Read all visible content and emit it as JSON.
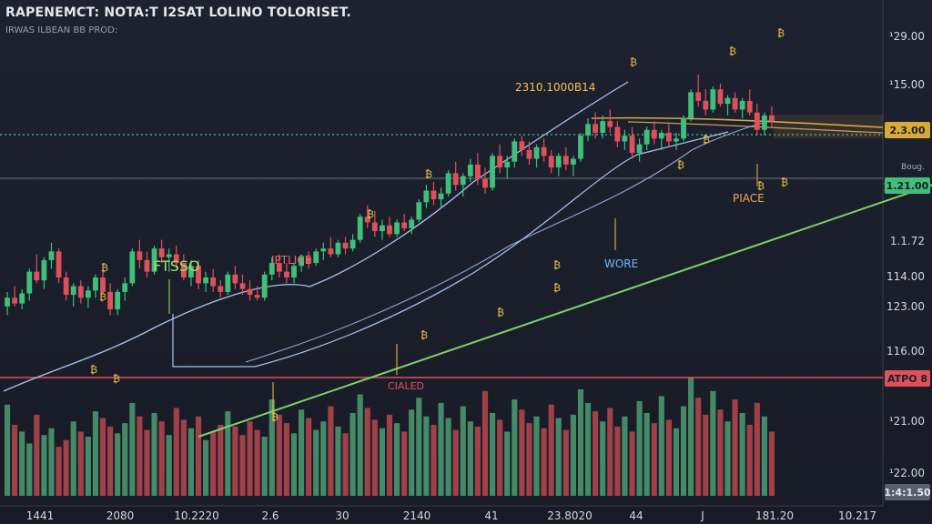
{
  "title": "RAPENEMCT: NOTA:T I2SAT LOLINO TOLORISET.",
  "subtitle": "IRWAS ILBEAN BB PROD:",
  "colors": {
    "background": "#1b1f2a",
    "up": "#3fbf7a",
    "down": "#e0505a",
    "up_volume": "#4e9e72",
    "down_volume": "#b8474f",
    "trend_line": "#7ed36a",
    "channel": "#a9c4f0",
    "level_line": "#d8a93a",
    "dotted_line": "#5fbf8a",
    "support_line": "#e0505a",
    "annotation": "#f3c24b"
  },
  "annotations": [
    {
      "text": "FTSSO",
      "color": "#9be36a"
    },
    {
      "text": "IPTLICE",
      "color": "#f06a6a"
    },
    {
      "text": "2310.1000B14",
      "color": "#f3c24b"
    },
    {
      "text": "PIACE",
      "color": "#f0a94b"
    },
    {
      "text": "WORE",
      "color": "#6fb7ff"
    },
    {
      "text": "CIALED",
      "color": "#e0505a"
    }
  ],
  "right_axis": {
    "ticks": [
      "¹29.00",
      "¹15.00",
      "2.3.00",
      "1.21.00",
      "1.1.72",
      "114.00",
      "123.00",
      "116.00",
      "ATPO 8",
      "¹21.00",
      "¹22.00"
    ],
    "badges": [
      {
        "text": "2.3.00",
        "bg": "#d8a93a"
      },
      {
        "text": "1.21.00",
        "bg": "#3fbf7a"
      },
      {
        "text": "ATPO 8",
        "bg": "#e0505a"
      },
      {
        "text": "1:4:1.50",
        "bg": "#5a5f6d"
      }
    ],
    "small_label": "Boug."
  },
  "x_axis": {
    "ticks": [
      "1441",
      "2080",
      "10.2220",
      "2.6",
      "30",
      "2140",
      "41",
      "23.8020",
      "44",
      "J",
      "181.20",
      "10.217"
    ]
  },
  "chart_data": {
    "type": "candlestick",
    "title": "RAPENEMCT: NOTA:T I2SAT LOLINO TOLORISET.",
    "ohlc": [
      [
        1.46,
        1.56,
        1.4,
        1.52
      ],
      [
        1.52,
        1.6,
        1.46,
        1.48
      ],
      [
        1.48,
        1.58,
        1.44,
        1.55
      ],
      [
        1.55,
        1.72,
        1.5,
        1.7
      ],
      [
        1.7,
        1.82,
        1.62,
        1.64
      ],
      [
        1.64,
        1.8,
        1.58,
        1.78
      ],
      [
        1.78,
        1.9,
        1.72,
        1.84
      ],
      [
        1.84,
        1.86,
        1.62,
        1.66
      ],
      [
        1.66,
        1.7,
        1.5,
        1.54
      ],
      [
        1.54,
        1.62,
        1.46,
        1.6
      ],
      [
        1.6,
        1.64,
        1.48,
        1.52
      ],
      [
        1.52,
        1.6,
        1.45,
        1.57
      ],
      [
        1.57,
        1.68,
        1.52,
        1.66
      ],
      [
        1.66,
        1.72,
        1.54,
        1.56
      ],
      [
        1.56,
        1.62,
        1.4,
        1.44
      ],
      [
        1.44,
        1.58,
        1.4,
        1.56
      ],
      [
        1.56,
        1.66,
        1.5,
        1.62
      ],
      [
        1.62,
        1.86,
        1.6,
        1.84
      ],
      [
        1.84,
        1.92,
        1.72,
        1.78
      ],
      [
        1.78,
        1.84,
        1.66,
        1.7
      ],
      [
        1.7,
        1.88,
        1.68,
        1.86
      ],
      [
        1.86,
        1.92,
        1.76,
        1.8
      ],
      [
        1.8,
        1.86,
        1.7,
        1.82
      ],
      [
        1.82,
        1.88,
        1.72,
        1.76
      ],
      [
        1.76,
        1.82,
        1.64,
        1.66
      ],
      [
        1.66,
        1.78,
        1.6,
        1.74
      ],
      [
        1.74,
        1.78,
        1.58,
        1.62
      ],
      [
        1.62,
        1.7,
        1.56,
        1.66
      ],
      [
        1.66,
        1.72,
        1.56,
        1.6
      ],
      [
        1.6,
        1.64,
        1.52,
        1.56
      ],
      [
        1.56,
        1.7,
        1.54,
        1.68
      ],
      [
        1.68,
        1.74,
        1.58,
        1.62
      ],
      [
        1.62,
        1.68,
        1.54,
        1.58
      ],
      [
        1.58,
        1.64,
        1.5,
        1.54
      ],
      [
        1.54,
        1.6,
        1.5,
        1.52
      ],
      [
        1.52,
        1.7,
        1.5,
        1.68
      ],
      [
        1.68,
        1.8,
        1.64,
        1.76
      ],
      [
        1.76,
        1.82,
        1.66,
        1.7
      ],
      [
        1.7,
        1.76,
        1.62,
        1.66
      ],
      [
        1.66,
        1.76,
        1.62,
        1.74
      ],
      [
        1.74,
        1.82,
        1.7,
        1.8
      ],
      [
        1.8,
        1.84,
        1.72,
        1.76
      ],
      [
        1.76,
        1.86,
        1.74,
        1.84
      ],
      [
        1.84,
        1.9,
        1.78,
        1.86
      ],
      [
        1.86,
        1.94,
        1.8,
        1.82
      ],
      [
        1.82,
        1.92,
        1.8,
        1.9
      ],
      [
        1.9,
        1.94,
        1.82,
        1.86
      ],
      [
        1.86,
        1.96,
        1.84,
        1.92
      ],
      [
        1.92,
        2.1,
        1.9,
        2.08
      ],
      [
        2.08,
        2.16,
        2.0,
        2.04
      ],
      [
        2.04,
        2.12,
        1.94,
        1.98
      ],
      [
        1.98,
        2.06,
        1.92,
        2.02
      ],
      [
        2.02,
        2.08,
        1.94,
        1.96
      ],
      [
        1.96,
        2.06,
        1.94,
        2.04
      ],
      [
        2.04,
        2.1,
        1.98,
        2.0
      ],
      [
        2.0,
        2.08,
        1.96,
        2.06
      ],
      [
        2.06,
        2.2,
        2.04,
        2.18
      ],
      [
        2.18,
        2.3,
        2.14,
        2.26
      ],
      [
        2.26,
        2.32,
        2.16,
        2.2
      ],
      [
        2.2,
        2.28,
        2.14,
        2.24
      ],
      [
        2.24,
        2.4,
        2.22,
        2.38
      ],
      [
        2.38,
        2.46,
        2.26,
        2.3
      ],
      [
        2.3,
        2.38,
        2.22,
        2.36
      ],
      [
        2.36,
        2.48,
        2.32,
        2.44
      ],
      [
        2.44,
        2.52,
        2.3,
        2.34
      ],
      [
        2.34,
        2.42,
        2.24,
        2.28
      ],
      [
        2.28,
        2.52,
        2.26,
        2.5
      ],
      [
        2.5,
        2.58,
        2.38,
        2.42
      ],
      [
        2.42,
        2.5,
        2.34,
        2.46
      ],
      [
        2.46,
        2.62,
        2.42,
        2.6
      ],
      [
        2.6,
        2.64,
        2.5,
        2.54
      ],
      [
        2.54,
        2.6,
        2.44,
        2.48
      ],
      [
        2.48,
        2.58,
        2.42,
        2.56
      ],
      [
        2.56,
        2.62,
        2.46,
        2.5
      ],
      [
        2.5,
        2.54,
        2.38,
        2.42
      ],
      [
        2.42,
        2.52,
        2.36,
        2.5
      ],
      [
        2.5,
        2.56,
        2.4,
        2.44
      ],
      [
        2.44,
        2.5,
        2.36,
        2.48
      ],
      [
        2.48,
        2.66,
        2.46,
        2.64
      ],
      [
        2.64,
        2.76,
        2.6,
        2.72
      ],
      [
        2.72,
        2.8,
        2.62,
        2.66
      ],
      [
        2.66,
        2.78,
        2.62,
        2.74
      ],
      [
        2.74,
        2.82,
        2.66,
        2.7
      ],
      [
        2.7,
        2.74,
        2.56,
        2.6
      ],
      [
        2.6,
        2.68,
        2.54,
        2.64
      ],
      [
        2.64,
        2.7,
        2.48,
        2.52
      ],
      [
        2.52,
        2.62,
        2.46,
        2.58
      ],
      [
        2.58,
        2.7,
        2.54,
        2.68
      ],
      [
        2.68,
        2.74,
        2.58,
        2.62
      ],
      [
        2.62,
        2.68,
        2.54,
        2.66
      ],
      [
        2.66,
        2.72,
        2.56,
        2.6
      ],
      [
        2.6,
        2.66,
        2.54,
        2.62
      ],
      [
        2.62,
        2.78,
        2.6,
        2.76
      ],
      [
        2.76,
        2.96,
        2.74,
        2.94
      ],
      [
        2.94,
        3.06,
        2.84,
        2.88
      ],
      [
        2.88,
        2.96,
        2.78,
        2.82
      ],
      [
        2.82,
        2.98,
        2.8,
        2.96
      ],
      [
        2.96,
        3.0,
        2.84,
        2.86
      ],
      [
        2.86,
        2.92,
        2.78,
        2.9
      ],
      [
        2.9,
        2.94,
        2.8,
        2.82
      ],
      [
        2.82,
        2.9,
        2.76,
        2.88
      ],
      [
        2.88,
        2.96,
        2.78,
        2.8
      ],
      [
        2.8,
        2.86,
        2.64,
        2.68
      ],
      [
        2.68,
        2.8,
        2.64,
        2.78
      ],
      [
        2.78,
        2.84,
        2.7,
        2.74
      ]
    ],
    "volume": [
      54,
      42,
      38,
      31,
      48,
      36,
      40,
      29,
      33,
      44,
      38,
      35,
      50,
      46,
      41,
      37,
      43,
      55,
      47,
      39,
      49,
      44,
      36,
      52,
      45,
      40,
      47,
      33,
      38,
      42,
      50,
      41,
      36,
      44,
      39,
      35,
      57,
      48,
      43,
      37,
      51,
      46,
      39,
      44,
      53,
      41,
      37,
      49,
      60,
      52,
      45,
      40,
      48,
      43,
      38,
      51,
      58,
      47,
      42,
      55,
      46,
      39,
      53,
      44,
      41,
      62,
      49,
      45,
      38,
      57,
      51,
      43,
      47,
      40,
      54,
      46,
      39,
      48,
      63,
      55,
      50,
      44,
      52,
      41,
      47,
      38,
      56,
      49,
      43,
      59,
      45,
      40,
      53,
      70,
      58,
      48,
      62,
      51,
      44,
      57,
      49,
      42,
      55,
      47,
      38
    ],
    "trend_line_points": [
      [
        27,
        1.1
      ],
      [
        134,
        2.88
      ]
    ],
    "level_lines": [
      2.6,
      2.5,
      1.55
    ],
    "ylim": [
      1.0,
      3.2
    ]
  }
}
